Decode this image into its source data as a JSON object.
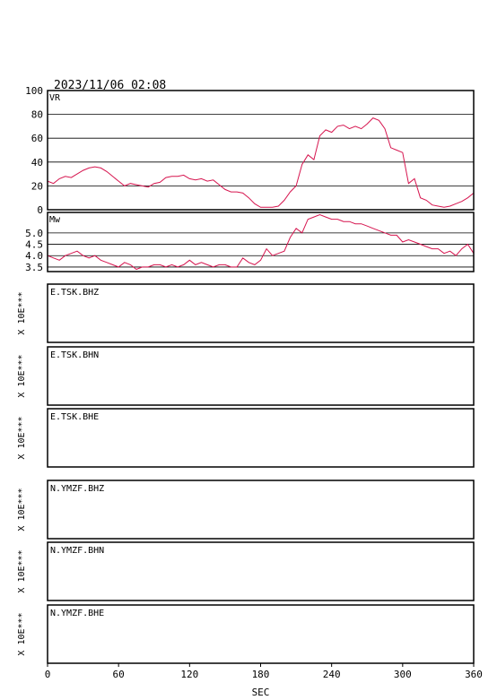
{
  "header": {
    "datetime": "2023/11/06 02:08"
  },
  "chart_data": [
    {
      "type": "line",
      "label": "VR",
      "xlim": [
        0,
        360
      ],
      "ylim": [
        0,
        100
      ],
      "yticks": [
        "0",
        "20",
        "40",
        "60",
        "80",
        "100"
      ],
      "grid": true,
      "color": "#d6154f",
      "x": [
        0,
        5,
        10,
        15,
        20,
        25,
        30,
        35,
        40,
        45,
        50,
        55,
        60,
        65,
        70,
        75,
        80,
        85,
        90,
        95,
        100,
        105,
        110,
        115,
        120,
        125,
        130,
        135,
        140,
        145,
        150,
        155,
        160,
        165,
        170,
        175,
        180,
        185,
        190,
        195,
        200,
        205,
        210,
        215,
        220,
        225,
        230,
        235,
        240,
        245,
        250,
        255,
        260,
        265,
        270,
        275,
        280,
        285,
        290,
        295,
        300,
        305,
        310,
        315,
        320,
        325,
        330,
        335,
        340,
        345,
        350,
        355,
        360
      ],
      "y": [
        24,
        22,
        26,
        28,
        27,
        30,
        33,
        35,
        36,
        35,
        32,
        28,
        24,
        20,
        22,
        21,
        20,
        19,
        22,
        23,
        27,
        28,
        28,
        29,
        26,
        25,
        26,
        24,
        25,
        21,
        17,
        15,
        15,
        14,
        10,
        5,
        2,
        2,
        2,
        3,
        8,
        15,
        20,
        38,
        46,
        42,
        62,
        67,
        65,
        70,
        71,
        68,
        70,
        68,
        72,
        77,
        75,
        68,
        52,
        50,
        48,
        22,
        26,
        10,
        8,
        4,
        3,
        2,
        3,
        5,
        7,
        10,
        14
      ]
    },
    {
      "type": "line",
      "label": "Mw",
      "xlim": [
        0,
        360
      ],
      "ylim": [
        3.3,
        5.9
      ],
      "yticks": [
        "3.5",
        "4.0",
        "4.5",
        "5.0"
      ],
      "grid": true,
      "color": "#d6154f",
      "x": [
        0,
        5,
        10,
        15,
        20,
        25,
        30,
        35,
        40,
        45,
        50,
        55,
        60,
        65,
        70,
        75,
        80,
        85,
        90,
        95,
        100,
        105,
        110,
        115,
        120,
        125,
        130,
        135,
        140,
        145,
        150,
        155,
        160,
        165,
        170,
        175,
        180,
        185,
        190,
        195,
        200,
        205,
        210,
        215,
        220,
        225,
        230,
        235,
        240,
        245,
        250,
        255,
        260,
        265,
        270,
        275,
        280,
        285,
        290,
        295,
        300,
        305,
        310,
        315,
        320,
        325,
        330,
        335,
        340,
        345,
        350,
        355,
        360
      ],
      "y": [
        4.0,
        3.9,
        3.8,
        4.0,
        4.1,
        4.2,
        4.0,
        3.9,
        4.0,
        3.8,
        3.7,
        3.6,
        3.5,
        3.7,
        3.6,
        3.4,
        3.5,
        3.5,
        3.6,
        3.6,
        3.5,
        3.6,
        3.5,
        3.6,
        3.8,
        3.6,
        3.7,
        3.6,
        3.5,
        3.6,
        3.6,
        3.5,
        3.5,
        3.9,
        3.7,
        3.6,
        3.8,
        4.3,
        4.0,
        4.1,
        4.2,
        4.8,
        5.2,
        5.0,
        5.6,
        5.7,
        5.8,
        5.7,
        5.6,
        5.6,
        5.5,
        5.5,
        5.4,
        5.4,
        5.3,
        5.2,
        5.1,
        5.0,
        4.9,
        4.9,
        4.6,
        4.7,
        4.6,
        4.5,
        4.4,
        4.3,
        4.3,
        4.1,
        4.2,
        4.0,
        4.3,
        4.5,
        4.1
      ]
    }
  ],
  "traces": [
    {
      "label": "E.TSK.BHZ",
      "scale": "X 10E***"
    },
    {
      "label": "E.TSK.BHN",
      "scale": "X 10E***"
    },
    {
      "label": "E.TSK.BHE",
      "scale": "X 10E***"
    },
    {
      "label": "N.YMZF.BHZ",
      "scale": "X 10E***"
    },
    {
      "label": "N.YMZF.BHN",
      "scale": "X 10E***"
    },
    {
      "label": "N.YMZF.BHE",
      "scale": "X 10E***"
    }
  ],
  "xaxis": {
    "ticks": [
      "0",
      "60",
      "120",
      "180",
      "240",
      "300",
      "360"
    ],
    "label": "SEC"
  }
}
